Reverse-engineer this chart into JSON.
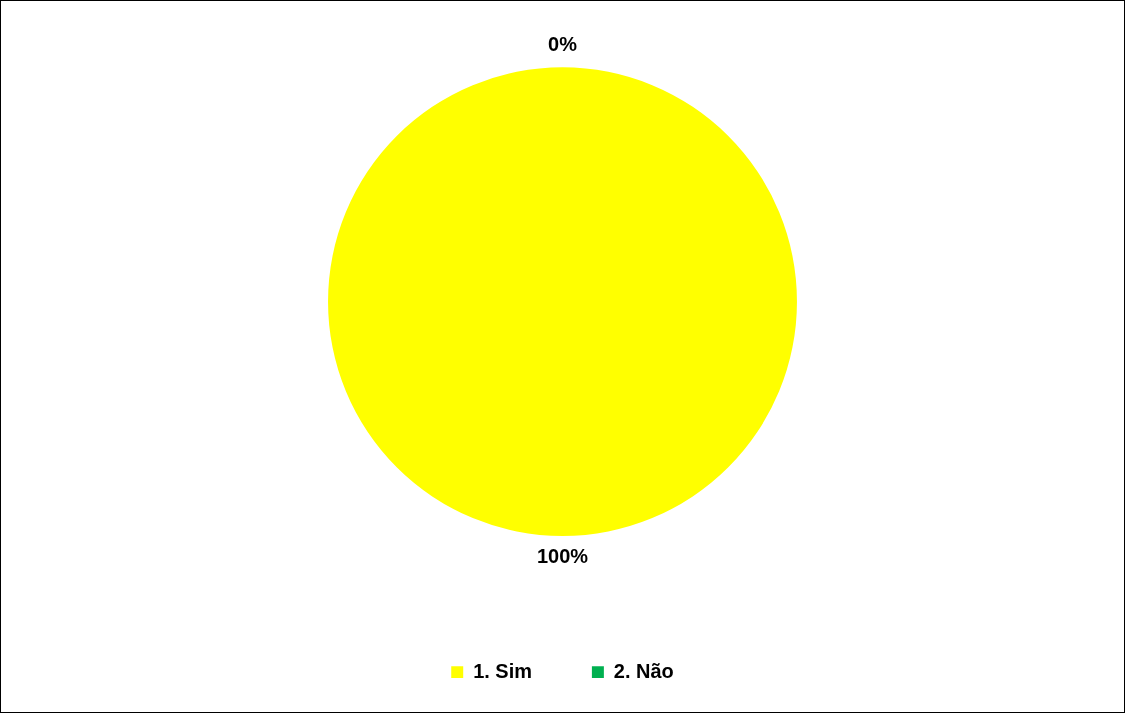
{
  "chart_data": {
    "type": "pie",
    "categories": [
      "1. Sim",
      "2. Não"
    ],
    "values": [
      100,
      0
    ],
    "colors": [
      "#ffff00",
      "#00b050"
    ],
    "value_labels": [
      "100%",
      "0%"
    ],
    "legend": "bottom"
  }
}
